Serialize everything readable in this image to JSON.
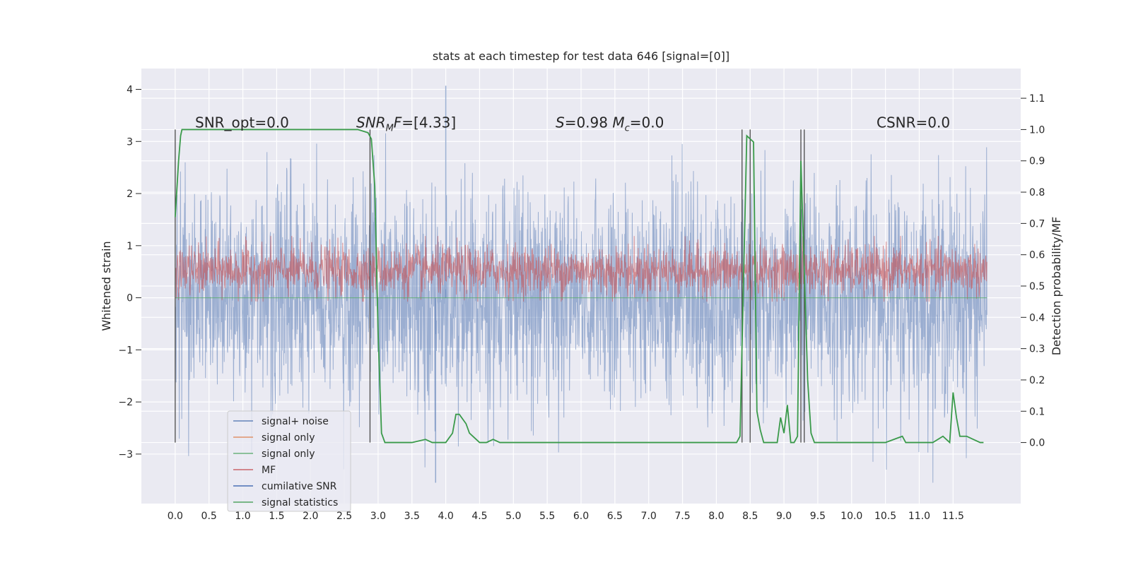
{
  "chart_data": {
    "type": "line",
    "title": "stats at each timestep for test data 646 [signal=[0]]",
    "ylabel": "Whitened strain",
    "y2label": "Detection probability/MF",
    "xlim": [
      -0.5,
      12.5
    ],
    "ylim": [
      -3.95,
      4.4
    ],
    "y2lim": [
      -0.195,
      1.195
    ],
    "x_ticks": [
      0.0,
      0.5,
      1.0,
      1.5,
      2.0,
      2.5,
      3.0,
      3.5,
      4.0,
      4.5,
      5.0,
      5.5,
      6.0,
      6.5,
      7.0,
      7.5,
      8.0,
      8.5,
      9.0,
      9.5,
      10.0,
      10.5,
      11.0,
      11.5
    ],
    "x_tick_labels": [
      "0.0",
      "0.5",
      "1.0",
      "1.5",
      "2.0",
      "2.5",
      "3.0",
      "3.5",
      "4.0",
      "4.5",
      "5.0",
      "5.5",
      "6.0",
      "6.5",
      "7.0",
      "7.5",
      "8.0",
      "8.5",
      "9.0",
      "9.5",
      "10.0",
      "10.5",
      "11.0",
      "11.5"
    ],
    "y_ticks": [
      -3,
      -2,
      -1,
      0,
      1,
      2,
      3,
      4
    ],
    "y_tick_labels": [
      "−3",
      "−2",
      "−1",
      "0",
      "1",
      "2",
      "3",
      "4"
    ],
    "y2_ticks": [
      0.0,
      0.1,
      0.2,
      0.3,
      0.4,
      0.5,
      0.6,
      0.7,
      0.8,
      0.9,
      1.0,
      1.1
    ],
    "y2_tick_labels": [
      "0.0",
      "0.1",
      "0.2",
      "0.3",
      "0.4",
      "0.5",
      "0.6",
      "0.7",
      "0.8",
      "0.9",
      "1.0",
      "1.1"
    ],
    "grid": true,
    "legend_placement": "lower-left",
    "legend_entries": [
      {
        "label": "signal+ noise",
        "color": "#4c72b0"
      },
      {
        "label": "signal only",
        "color": "#dd8452"
      },
      {
        "label": "signal only",
        "color": "#55a868"
      },
      {
        "label": "MF",
        "color": "#c44e52"
      },
      {
        "label": "cumilative SNR",
        "color": "#2e5aa8"
      },
      {
        "label": "signal statistics",
        "color": "#3a9a4a"
      }
    ],
    "annotations": [
      {
        "text": "SNR_opt=0.0"
      },
      {
        "text": "SNR_MF=[4.33]"
      },
      {
        "text": "S=0.98   M_c=0.0"
      },
      {
        "text": "CSNR=0.0"
      }
    ],
    "signal_noise": {
      "name": "signal+ noise",
      "color": "#4c72b0",
      "x_range": [
        0.0,
        12.0
      ],
      "envelope_high_approx": 3.0,
      "envelope_low_approx": -3.0,
      "peak_max": 4.07,
      "peak_min": -3.55
    },
    "mf": {
      "name": "MF",
      "color": "#c44e52",
      "axis": "right",
      "x_range": [
        0.0,
        12.0
      ],
      "band_low": 0.46,
      "band_high": 0.64
    },
    "signal_statistics": {
      "name": "signal statistics",
      "color": "#3a9a4a",
      "axis": "right",
      "x": [
        0.0,
        0.05,
        0.08,
        0.1,
        0.15,
        0.2,
        2.7,
        2.85,
        2.9,
        2.95,
        3.0,
        3.05,
        3.1,
        3.2,
        3.3,
        3.5,
        3.7,
        3.8,
        3.9,
        4.0,
        4.1,
        4.15,
        4.2,
        4.3,
        4.35,
        4.4,
        4.5,
        4.6,
        4.7,
        4.8,
        5.0,
        8.2,
        8.3,
        8.35,
        8.45,
        8.55,
        8.6,
        8.65,
        8.7,
        8.8,
        8.9,
        8.95,
        9.0,
        9.05,
        9.1,
        9.15,
        9.2,
        9.25,
        9.3,
        9.35,
        9.4,
        9.45,
        9.5,
        9.7,
        10.0,
        10.5,
        10.75,
        10.8,
        10.9,
        11.2,
        11.35,
        11.45,
        11.5,
        11.55,
        11.6,
        11.65,
        11.7,
        11.8,
        11.9,
        11.95
      ],
      "y": [
        0.72,
        0.9,
        0.98,
        1.0,
        1.0,
        1.0,
        1.0,
        0.99,
        0.97,
        0.82,
        0.35,
        0.03,
        0.0,
        0.0,
        0.0,
        0.0,
        0.01,
        0.0,
        0.0,
        0.0,
        0.03,
        0.09,
        0.09,
        0.06,
        0.03,
        0.02,
        0.0,
        0.0,
        0.01,
        0.0,
        0.0,
        0.0,
        0.0,
        0.02,
        0.98,
        0.96,
        0.1,
        0.04,
        0.0,
        0.0,
        0.0,
        0.08,
        0.03,
        0.12,
        0.0,
        0.0,
        0.02,
        0.9,
        0.55,
        0.2,
        0.03,
        0.0,
        0.0,
        0.0,
        0.0,
        0.0,
        0.02,
        0.0,
        0.0,
        0.0,
        0.02,
        0.0,
        0.16,
        0.08,
        0.02,
        0.02,
        0.02,
        0.01,
        0.0,
        0.0
      ]
    },
    "vertical_lines_x": [
      0.0,
      2.88,
      8.38,
      8.5,
      9.25,
      9.3
    ],
    "vertical_lines_color": "#4a4a4a"
  }
}
